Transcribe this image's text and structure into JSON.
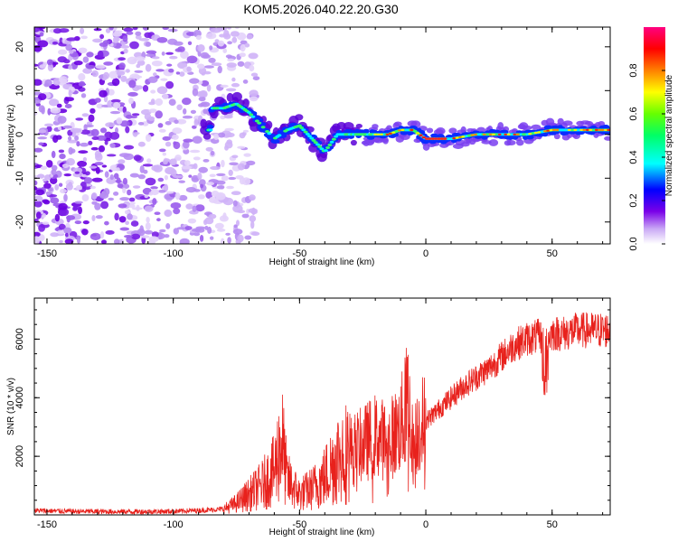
{
  "title": "KOM5.2026.040.22.20.G30",
  "chart_data": [
    {
      "type": "heatmap",
      "xlabel": "Height of straight line (km)",
      "ylabel": "Frequency (Hz)",
      "xlim": [
        -155,
        73
      ],
      "ylim": [
        -25,
        24.5
      ],
      "xticks": [
        -150,
        -100,
        -50,
        0,
        50
      ],
      "yticks": [
        -20,
        -10,
        0,
        10,
        20
      ],
      "colorbar": {
        "label": "Normalized spectral amplitude",
        "range": [
          0,
          1
        ],
        "ticks": [
          "0.0",
          "0.2",
          "0.4",
          "0.6",
          "0.8"
        ],
        "colors": [
          "#ffffff",
          "#c9a8f5",
          "#7a00e8",
          "#0000ff",
          "#00ffff",
          "#00ff66",
          "#66ff00",
          "#ffff00",
          "#ff8000",
          "#ff0000",
          "#ff0080"
        ]
      },
      "ridge": {
        "x": [
          -85,
          -80,
          -75,
          -70,
          -65,
          -60,
          -55,
          -50,
          -45,
          -40,
          -35,
          -30,
          -25,
          -20,
          -15,
          -10,
          -5,
          0,
          10,
          20,
          30,
          40,
          50,
          60,
          70
        ],
        "y": [
          6,
          6,
          7,
          5,
          2,
          -1,
          1,
          2,
          -1,
          -4,
          0,
          0,
          0,
          0,
          0,
          1,
          1,
          -1,
          -1,
          0,
          0,
          0,
          1,
          1,
          1
        ]
      }
    },
    {
      "type": "line",
      "xlabel": "Height of straight line (km)",
      "ylabel": "SNR (10 * v/v)",
      "xlim": [
        -155,
        73
      ],
      "ylim": [
        0,
        7400
      ],
      "xticks": [
        -150,
        -100,
        -50,
        0,
        50
      ],
      "yticks": [
        2000,
        4000,
        6000
      ],
      "color": "#e8211c",
      "series": {
        "name": "SNR",
        "x": [
          -155,
          -140,
          -120,
          -100,
          -90,
          -80,
          -75,
          -70,
          -65,
          -60,
          -57,
          -55,
          -52,
          -50,
          -45,
          -40,
          -35,
          -30,
          -25,
          -20,
          -15,
          -10,
          -7,
          -5,
          -3,
          0,
          5,
          10,
          15,
          20,
          25,
          30,
          35,
          40,
          45,
          48,
          50,
          55,
          60,
          65,
          70,
          73
        ],
        "y": [
          150,
          120,
          110,
          120,
          150,
          200,
          400,
          700,
          1000,
          1500,
          2600,
          1200,
          900,
          700,
          900,
          1300,
          2000,
          2200,
          2400,
          2700,
          2500,
          3000,
          4000,
          2200,
          3000,
          3200,
          3600,
          4000,
          4400,
          4700,
          5000,
          5400,
          5800,
          6000,
          6100,
          6000,
          6200,
          6200,
          6300,
          6300,
          6300,
          6300
        ]
      }
    }
  ]
}
